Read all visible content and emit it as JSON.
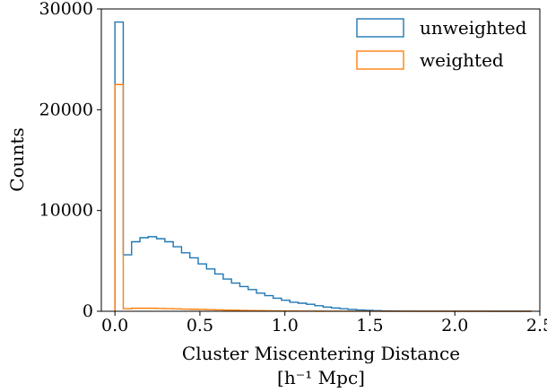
{
  "chart_data": {
    "type": "histogram-step",
    "xlabel_line1": "Cluster Miscentering Distance",
    "xlabel_line2": "[h⁻¹ Mpc]",
    "ylabel": "Counts",
    "xlim": [
      -0.08,
      2.5
    ],
    "ylim": [
      0,
      30000
    ],
    "xticks": [
      0.0,
      0.5,
      1.0,
      1.5,
      2.0,
      2.5
    ],
    "xtick_labels": [
      "0.0",
      "0.5",
      "1.0",
      "1.5",
      "2.0",
      "2.5"
    ],
    "yticks": [
      0,
      10000,
      20000,
      30000
    ],
    "ytick_labels": [
      "0",
      "10000",
      "20000",
      "30000"
    ],
    "bin_edges": [
      0.0,
      0.049,
      0.098,
      0.147,
      0.196,
      0.245,
      0.294,
      0.343,
      0.392,
      0.441,
      0.49,
      0.539,
      0.588,
      0.637,
      0.686,
      0.735,
      0.784,
      0.833,
      0.882,
      0.931,
      0.98,
      1.029,
      1.078,
      1.127,
      1.176,
      1.225,
      1.274,
      1.323,
      1.372,
      1.421,
      1.47,
      1.519,
      1.568,
      1.617,
      1.666,
      1.715,
      1.764,
      1.813,
      1.862,
      1.911,
      1.96,
      2.009,
      2.058,
      2.107,
      2.156,
      2.205,
      2.254,
      2.303,
      2.352,
      2.401,
      2.45
    ],
    "legend_position": "top-right",
    "series": [
      {
        "name": "unweighted",
        "color": "#1f77b4",
        "values": [
          28700,
          5600,
          6900,
          7300,
          7400,
          7200,
          6900,
          6400,
          5800,
          5300,
          4700,
          4200,
          3700,
          3200,
          2800,
          2450,
          2150,
          1800,
          1550,
          1300,
          1100,
          900,
          800,
          700,
          550,
          420,
          330,
          250,
          180,
          130,
          90,
          60,
          40,
          30,
          20,
          15,
          10,
          8,
          6,
          5,
          4,
          3,
          3,
          2,
          2,
          1,
          1,
          1,
          1,
          1
        ]
      },
      {
        "name": "weighted",
        "color": "#ff7f0e",
        "values": [
          22500,
          250,
          300,
          300,
          300,
          280,
          260,
          240,
          220,
          200,
          180,
          160,
          140,
          120,
          100,
          85,
          70,
          60,
          50,
          40,
          32,
          25,
          20,
          15,
          12,
          9,
          7,
          5,
          4,
          3,
          2,
          2,
          1,
          1,
          1,
          1,
          0,
          0,
          0,
          0,
          0,
          0,
          0,
          0,
          0,
          0,
          0,
          0,
          0,
          0
        ]
      }
    ]
  }
}
